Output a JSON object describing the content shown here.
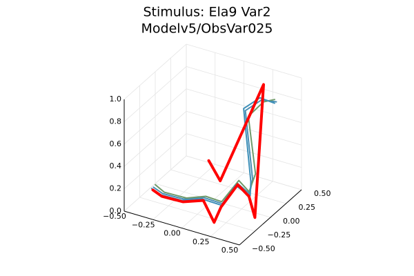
{
  "chart_data": {
    "type": "line3d",
    "title": [
      "Stimulus: Ela9 Var2",
      "Modelv5/ObsVar025"
    ],
    "xlim": [
      -0.5,
      0.5
    ],
    "xticks": [
      {
        "value": -0.5,
        "label": "−0.50"
      },
      {
        "value": -0.25,
        "label": "−0.25"
      },
      {
        "value": 0,
        "label": "0.00"
      },
      {
        "value": 0.25,
        "label": "0.25"
      },
      {
        "value": 0.5,
        "label": "0.50"
      }
    ],
    "ylim": [
      -0.5,
      0.5
    ],
    "yticks": [
      {
        "value": -0.5,
        "label": "−0.50"
      },
      {
        "value": -0.25,
        "label": "−0.25"
      },
      {
        "value": 0,
        "label": "0.00"
      },
      {
        "value": 0.25,
        "label": "0.25"
      },
      {
        "value": 0.5,
        "label": "0.50"
      }
    ],
    "zlim": [
      0,
      1
    ],
    "zticks": [
      {
        "value": 0,
        "label": "0.0"
      },
      0.2,
      0.4,
      0.6,
      0.8,
      {
        "value": 1,
        "label": "1.0"
      }
    ],
    "grid": true,
    "series": [
      {
        "color": "#4a8fb5",
        "width": 2,
        "x": [
          -0.37,
          -0.28,
          -0.12,
          0.02,
          0.2,
          0.21,
          0.33,
          0.35,
          0.25,
          0.36,
          0.47
        ],
        "y": [
          -0.27,
          -0.29,
          -0.25,
          -0.18,
          -0.22,
          0.0,
          -0.02,
          -0.01,
          0.06,
          0.12,
          0.15
        ],
        "z": [
          0.14,
          0.12,
          0.1,
          0.12,
          0.14,
          0.22,
          0.17,
          0.3,
          0.85,
          0.95,
          0.95
        ]
      },
      {
        "color": "#6f9a6a",
        "width": 2,
        "x": [
          -0.36,
          -0.27,
          -0.1,
          0.03,
          0.19,
          0.22,
          0.32,
          0.37,
          0.27,
          0.37,
          0.45
        ],
        "y": [
          -0.26,
          -0.28,
          -0.24,
          -0.17,
          -0.21,
          0.01,
          -0.01,
          0.0,
          0.07,
          0.13,
          0.16
        ],
        "z": [
          0.16,
          0.13,
          0.11,
          0.13,
          0.15,
          0.24,
          0.18,
          0.35,
          0.8,
          0.93,
          0.96
        ]
      },
      {
        "color": "#3d8fb8",
        "width": 2,
        "x": [
          -0.38,
          -0.29,
          -0.13,
          0.01,
          0.21,
          0.2,
          0.34,
          0.34,
          0.24,
          0.35,
          0.46
        ],
        "y": [
          -0.28,
          -0.3,
          -0.26,
          -0.19,
          -0.23,
          -0.01,
          -0.03,
          -0.02,
          0.05,
          0.11,
          0.14
        ],
        "z": [
          0.13,
          0.11,
          0.09,
          0.11,
          0.13,
          0.2,
          0.16,
          0.28,
          0.87,
          0.97,
          0.94
        ]
      },
      {
        "color": "#ff0000",
        "width": 4,
        "x": [
          0.05,
          0.15,
          0.3,
          0.44,
          0.33,
          0.21,
          0.2,
          0.21,
          0.02,
          -0.12,
          -0.28,
          -0.37
        ],
        "y": [
          -0.16,
          -0.16,
          0.26,
          -0.14,
          -0.03,
          0.01,
          -0.24,
          -0.37,
          -0.19,
          -0.26,
          -0.3,
          -0.28
        ],
        "z": [
          0.45,
          0.3,
          1.0,
          0.05,
          0.15,
          0.2,
          0.12,
          0.05,
          0.1,
          0.08,
          0.1,
          0.12
        ]
      }
    ]
  }
}
